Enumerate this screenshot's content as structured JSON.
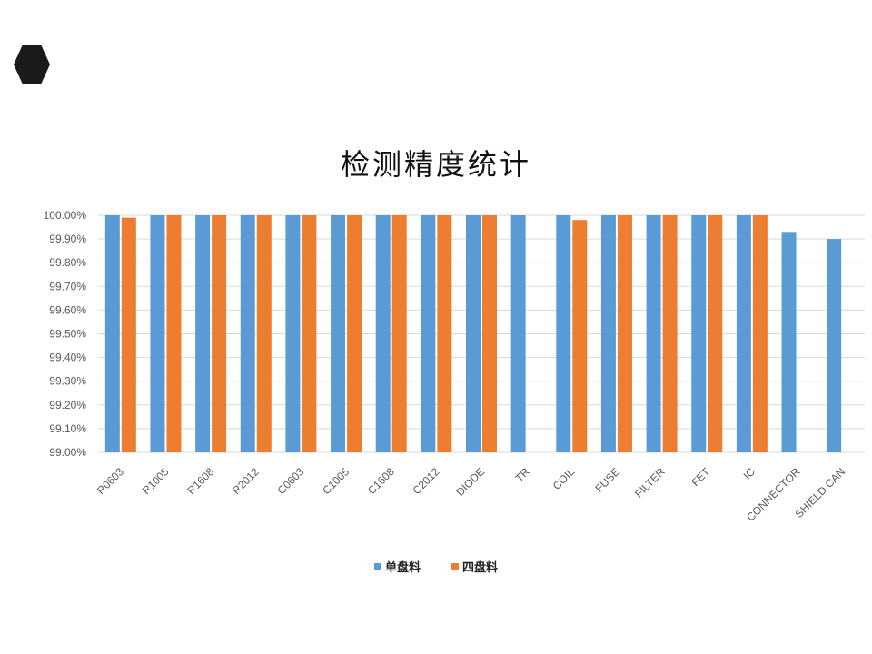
{
  "colors": {
    "series_1": "#5B9BD5",
    "series_2": "#ED7D31",
    "grid": "#D9D9D9",
    "logo": "#1a1a1a"
  },
  "icons": {
    "logo": "hexagon-icon"
  },
  "chart_data": {
    "type": "bar",
    "title": "检测精度统计",
    "xlabel": "",
    "ylabel": "",
    "ylim": [
      99.0,
      100.0
    ],
    "yticks": [
      "99.00%",
      "99.10%",
      "99.20%",
      "99.30%",
      "99.40%",
      "99.50%",
      "99.60%",
      "99.70%",
      "99.80%",
      "99.90%",
      "100.00%"
    ],
    "grid": true,
    "legend_position": "bottom",
    "categories": [
      "R0603",
      "R1005",
      "R1608",
      "R2012",
      "C0603",
      "C1005",
      "C1608",
      "C2012",
      "DIODE",
      "TR",
      "COIL",
      "FUSE",
      "FILTER",
      "FET",
      "IC",
      "CONNECTOR",
      "SHIELD CAN"
    ],
    "series": [
      {
        "name": "单盘料",
        "values": [
          100.0,
          100.0,
          100.0,
          100.0,
          100.0,
          100.0,
          100.0,
          100.0,
          100.0,
          100.0,
          100.0,
          100.0,
          100.0,
          100.0,
          100.0,
          99.93,
          99.9
        ]
      },
      {
        "name": "四盘料",
        "values": [
          99.99,
          100.0,
          100.0,
          100.0,
          100.0,
          100.0,
          100.0,
          100.0,
          100.0,
          null,
          99.98,
          100.0,
          100.0,
          100.0,
          100.0,
          null,
          null
        ]
      }
    ]
  }
}
